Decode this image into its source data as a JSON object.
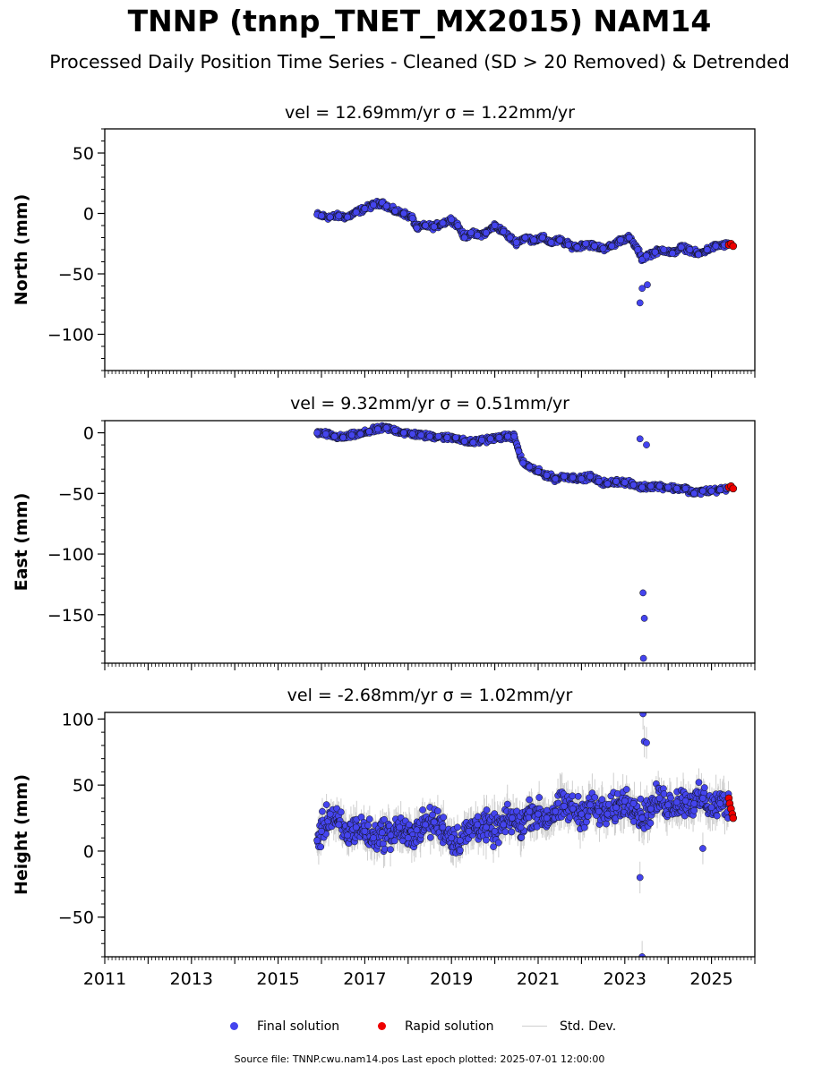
{
  "figure": {
    "title": "TNNP (tnnp_TNET_MX2015) NAM14",
    "subtitle": "Processed Daily Position Time Series - Cleaned (SD > 20 Removed) & Detrended",
    "footer": "Source file: TNNP.cwu.nam14.pos  Last epoch plotted: 2025-07-01 12:00:00"
  },
  "legend": {
    "final_label": "Final solution",
    "rapid_label": "Rapid solution",
    "std_label": "Std. Dev."
  },
  "colors": {
    "final": "#4444ee",
    "rapid": "#ee0000",
    "std": "#cfcfcf",
    "marker_edge": "#111111"
  },
  "chart_data": [
    {
      "type": "scatter",
      "panel": "north",
      "title": "vel = 12.69mm/yr   σ = 1.22mm/yr",
      "ylabel": "North (mm)",
      "xlim": [
        2011.0,
        2026.0
      ],
      "ylim": [
        -130,
        70
      ],
      "yticks": [
        50,
        0,
        -50,
        -100
      ],
      "ytick_labels": [
        "50",
        "0",
        "−50",
        "−100"
      ],
      "series": [
        {
          "name": "Final solution",
          "x": [
            2015.9,
            2016.0,
            2016.2,
            2016.4,
            2016.6,
            2016.8,
            2017.0,
            2017.2,
            2017.4,
            2017.5,
            2017.7,
            2017.9,
            2018.1,
            2018.2,
            2018.4,
            2018.6,
            2018.8,
            2019.0,
            2019.15,
            2019.3,
            2019.45,
            2019.6,
            2019.8,
            2020.0,
            2020.2,
            2020.35,
            2020.5,
            2020.7,
            2020.9,
            2021.1,
            2021.3,
            2021.5,
            2021.7,
            2021.9,
            2022.1,
            2022.3,
            2022.5,
            2022.7,
            2022.9,
            2023.1,
            2023.3,
            2023.4,
            2023.5,
            2023.7,
            2023.9,
            2024.1,
            2024.3,
            2024.5,
            2024.7,
            2024.9,
            2025.1,
            2025.3,
            2025.4
          ],
          "y": [
            -1,
            -2,
            -3,
            -2,
            -3,
            1,
            4,
            7,
            9,
            6,
            2,
            0,
            -4,
            -12,
            -10,
            -11,
            -8,
            -5,
            -10,
            -20,
            -16,
            -18,
            -16,
            -10,
            -15,
            -20,
            -24,
            -20,
            -22,
            -20,
            -24,
            -22,
            -26,
            -28,
            -25,
            -27,
            -29,
            -27,
            -22,
            -20,
            -30,
            -38,
            -35,
            -32,
            -30,
            -33,
            -28,
            -30,
            -34,
            -30,
            -27,
            -26,
            -26
          ]
        },
        {
          "name": "Final solution outliers",
          "x": [
            2023.35,
            2023.4,
            2023.52
          ],
          "y": [
            -74,
            -62,
            -59
          ]
        },
        {
          "name": "Rapid solution",
          "x": [
            2025.4,
            2025.45,
            2025.5
          ],
          "y": [
            -26,
            -25,
            -27
          ]
        }
      ]
    },
    {
      "type": "scatter",
      "panel": "east",
      "title": "vel = 9.32mm/yr   σ = 0.51mm/yr",
      "ylabel": "East (mm)",
      "xlim": [
        2011.0,
        2026.0
      ],
      "ylim": [
        -190,
        10
      ],
      "yticks": [
        0,
        -50,
        -100,
        -150
      ],
      "ytick_labels": [
        "0",
        "−50",
        "−100",
        "−150"
      ],
      "series": [
        {
          "name": "Final solution",
          "x": [
            2015.9,
            2016.1,
            2016.3,
            2016.5,
            2016.7,
            2016.9,
            2017.1,
            2017.3,
            2017.5,
            2017.7,
            2017.9,
            2018.1,
            2018.3,
            2018.5,
            2018.7,
            2018.9,
            2019.1,
            2019.3,
            2019.5,
            2019.7,
            2019.9,
            2020.1,
            2020.3,
            2020.45,
            2020.55,
            2020.65,
            2020.8,
            2021.0,
            2021.2,
            2021.4,
            2021.6,
            2021.8,
            2022.0,
            2022.2,
            2022.4,
            2022.6,
            2022.8,
            2023.0,
            2023.2,
            2023.4,
            2023.6,
            2023.8,
            2024.0,
            2024.2,
            2024.4,
            2024.6,
            2024.8,
            2025.0,
            2025.2,
            2025.35
          ],
          "y": [
            0,
            -1,
            -3,
            -4,
            -2,
            -1,
            1,
            3,
            4,
            2,
            0,
            -1,
            -2,
            -3,
            -3,
            -4,
            -4,
            -7,
            -8,
            -6,
            -5,
            -4,
            -3,
            -3,
            -15,
            -25,
            -28,
            -32,
            -35,
            -38,
            -36,
            -37,
            -38,
            -36,
            -40,
            -42,
            -40,
            -41,
            -43,
            -45,
            -44,
            -44,
            -45,
            -46,
            -46,
            -50,
            -48,
            -48,
            -47,
            -46
          ]
        },
        {
          "name": "Final solution outliers",
          "x": [
            2023.35,
            2023.5,
            2023.42,
            2023.45,
            2023.43
          ],
          "y": [
            -5,
            -10,
            -132,
            -153,
            -186
          ]
        },
        {
          "name": "Rapid solution",
          "x": [
            2025.4,
            2025.45,
            2025.5
          ],
          "y": [
            -45,
            -44,
            -46
          ]
        }
      ]
    },
    {
      "type": "scatter",
      "panel": "height",
      "title": "vel = -2.68mm/yr   σ = 1.02mm/yr",
      "ylabel": "Height (mm)",
      "xlabel": "",
      "xlim": [
        2011.0,
        2026.0
      ],
      "ylim": [
        -80,
        105
      ],
      "yticks": [
        100,
        50,
        0,
        -50
      ],
      "ytick_labels": [
        "100",
        "50",
        "0",
        "−50"
      ],
      "xticks": [
        2011,
        2013,
        2015,
        2017,
        2019,
        2021,
        2023,
        2025
      ],
      "xtick_labels": [
        "2011",
        "2013",
        "2015",
        "2017",
        "2019",
        "2021",
        "2023",
        "2025"
      ],
      "series": [
        {
          "name": "Final solution",
          "x": [
            2015.9,
            2016.0,
            2016.2,
            2016.4,
            2016.6,
            2016.8,
            2017.0,
            2017.2,
            2017.4,
            2017.6,
            2017.8,
            2018.0,
            2018.2,
            2018.4,
            2018.6,
            2018.8,
            2019.0,
            2019.2,
            2019.4,
            2019.6,
            2019.8,
            2020.0,
            2020.2,
            2020.4,
            2020.6,
            2020.8,
            2021.0,
            2021.2,
            2021.4,
            2021.6,
            2021.8,
            2022.0,
            2022.2,
            2022.4,
            2022.6,
            2022.8,
            2023.0,
            2023.2,
            2023.4,
            2023.6,
            2023.8,
            2024.0,
            2024.2,
            2024.4,
            2024.6,
            2024.8,
            2025.0,
            2025.2,
            2025.4
          ],
          "y": [
            8,
            15,
            28,
            20,
            12,
            18,
            15,
            10,
            14,
            12,
            18,
            10,
            16,
            20,
            22,
            18,
            10,
            8,
            15,
            20,
            18,
            15,
            20,
            25,
            18,
            30,
            28,
            25,
            30,
            34,
            32,
            28,
            35,
            30,
            28,
            33,
            38,
            36,
            25,
            32,
            40,
            35,
            37,
            38,
            36,
            40,
            33,
            36,
            35
          ]
        },
        {
          "name": "Final solution outliers",
          "x": [
            2023.42,
            2023.45,
            2023.5,
            2023.35,
            2023.4,
            2024.8
          ],
          "y": [
            104,
            83,
            82,
            -20,
            -80,
            2
          ]
        },
        {
          "name": "Rapid solution",
          "x": [
            2025.4,
            2025.42,
            2025.45,
            2025.48,
            2025.5
          ],
          "y": [
            40,
            36,
            32,
            28,
            25
          ]
        }
      ]
    }
  ]
}
